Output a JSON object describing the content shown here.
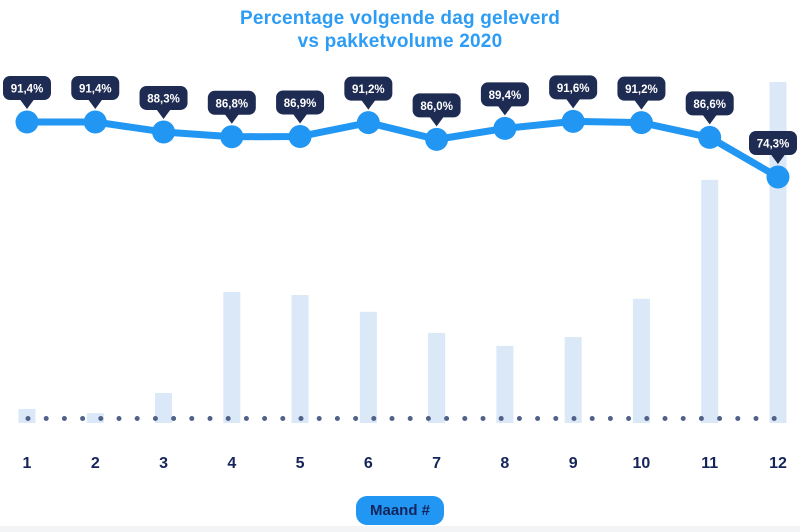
{
  "title": {
    "line1": "Percentage volgende dag geleverd",
    "line2": "vs pakketvolume 2020"
  },
  "x_axis": {
    "badge_label": "Maand #",
    "months": [
      "1",
      "2",
      "3",
      "4",
      "5",
      "6",
      "7",
      "8",
      "9",
      "10",
      "11",
      "12"
    ]
  },
  "colors": {
    "accent_blue": "#2196f3",
    "title_blue": "#2d9cf4",
    "tooltip_navy": "#1e2b52",
    "tooltip_text": "#ffffff",
    "axis_text": "#15245a",
    "badge_text": "#13265c",
    "bar_light_blue": "#dae8f8",
    "dot_slate": "#51618a",
    "footer_strip": "#f2f4f6",
    "background": "#ffffff"
  },
  "chart_data": {
    "type": "line+bar",
    "title": "Percentage volgende dag geleverd vs pakketvolume 2020",
    "xlabel": "Maand #",
    "categories": [
      "1",
      "2",
      "3",
      "4",
      "5",
      "6",
      "7",
      "8",
      "9",
      "10",
      "11",
      "12"
    ],
    "grid": false,
    "legend": "none",
    "baseline": "dotted",
    "series": [
      {
        "name": "Percentage volgende dag geleverd",
        "type": "line",
        "unit": "%",
        "ylim_estimate": [
          70,
          95
        ],
        "values": [
          91.4,
          91.4,
          88.3,
          86.8,
          86.9,
          91.2,
          86.0,
          89.4,
          91.6,
          91.2,
          86.6,
          74.3
        ],
        "labels": [
          "91,4%",
          "91,4%",
          "88,3%",
          "86,8%",
          "86,9%",
          "91,2%",
          "86,0%",
          "89,4%",
          "91,6%",
          "91,2%",
          "86,6%",
          "74,3%"
        ]
      },
      {
        "name": "Pakketvolume 2020",
        "type": "bar",
        "unit": "relative volume (estimated, max month = 100)",
        "values": [
          4.1,
          2.9,
          8.8,
          38.4,
          37.5,
          32.6,
          26.4,
          22.6,
          25.2,
          36.4,
          71.3,
          100
        ]
      }
    ]
  }
}
